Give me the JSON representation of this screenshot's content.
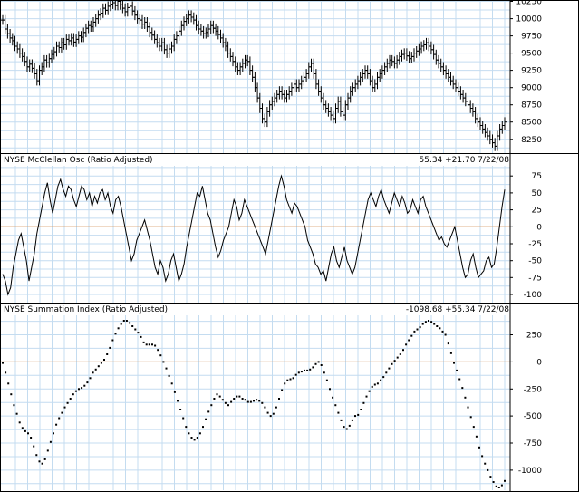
{
  "chart_data": [
    {
      "type": "ohlc",
      "title": "",
      "ylim": [
        8050,
        10270
      ],
      "yticks": [
        8250,
        8500,
        8750,
        9000,
        9250,
        9500,
        9750,
        10000,
        10250
      ],
      "grid": true,
      "values": [
        9980,
        9850,
        9780,
        9720,
        9680,
        9600,
        9560,
        9500,
        9450,
        9380,
        9300,
        9340,
        9280,
        9200,
        9100,
        9250,
        9300,
        9400,
        9360,
        9420,
        9480,
        9520,
        9600,
        9580,
        9650,
        9620,
        9700,
        9680,
        9720,
        9660,
        9700,
        9750,
        9730,
        9800,
        9860,
        9900,
        9880,
        9950,
        10000,
        10050,
        10080,
        10150,
        10120,
        10180,
        10210,
        10230,
        10190,
        10250,
        10200,
        10150,
        10100,
        10160,
        10180,
        10110,
        10050,
        10000,
        9980,
        9920,
        9950,
        9880,
        9800,
        9760,
        9700,
        9650,
        9600,
        9650,
        9550,
        9500,
        9560,
        9600,
        9700,
        9750,
        9820,
        9900,
        9960,
        10000,
        10050,
        10020,
        9980,
        9900,
        9850,
        9820,
        9780,
        9800,
        9850,
        9900,
        9860,
        9820,
        9770,
        9720,
        9650,
        9600,
        9500,
        9450,
        9380,
        9300,
        9250,
        9300,
        9350,
        9400,
        9380,
        9250,
        9150,
        9000,
        8850,
        8700,
        8550,
        8500,
        8650,
        8750,
        8800,
        8850,
        8900,
        8950,
        8900,
        8850,
        8900,
        8950,
        9000,
        9050,
        9000,
        9050,
        9100,
        9150,
        9200,
        9300,
        9350,
        9200,
        9050,
        8950,
        8850,
        8750,
        8700,
        8650,
        8600,
        8550,
        8700,
        8800,
        8650,
        8600,
        8750,
        8850,
        8950,
        9000,
        9050,
        9100,
        9150,
        9200,
        9250,
        9200,
        9100,
        9000,
        9050,
        9150,
        9200,
        9250,
        9300,
        9350,
        9400,
        9380,
        9350,
        9400,
        9450,
        9480,
        9500,
        9460,
        9420,
        9450,
        9500,
        9530,
        9560,
        9600,
        9620,
        9650,
        9600,
        9550,
        9480,
        9400,
        9350,
        9300,
        9250,
        9200,
        9150,
        9100,
        9050,
        9000,
        8950,
        8900,
        8850,
        8800,
        8750,
        8700,
        8650,
        8550,
        8500,
        8450,
        8400,
        8350,
        8300,
        8250,
        8200,
        8150,
        8300,
        8400,
        8450,
        8500
      ]
    },
    {
      "type": "line",
      "title": "NYSE McClellan Osc (Ratio Adjusted)",
      "readout": "55.34  +21.70  7/22/08",
      "ylim": [
        -112,
        90
      ],
      "yticks": [
        -100,
        -75,
        -50,
        -25,
        0,
        25,
        50,
        75
      ],
      "zero_line": 0,
      "zero_line_color": "#e07b20",
      "grid": true,
      "values": [
        -70,
        -80,
        -100,
        -90,
        -60,
        -40,
        -20,
        -10,
        -30,
        -50,
        -80,
        -60,
        -40,
        -10,
        10,
        30,
        50,
        65,
        40,
        20,
        40,
        60,
        70,
        55,
        45,
        60,
        55,
        40,
        30,
        45,
        60,
        55,
        40,
        50,
        30,
        45,
        35,
        50,
        55,
        40,
        50,
        30,
        20,
        40,
        45,
        30,
        10,
        -10,
        -30,
        -50,
        -40,
        -20,
        -10,
        0,
        10,
        -5,
        -20,
        -40,
        -60,
        -70,
        -50,
        -60,
        -80,
        -70,
        -50,
        -40,
        -60,
        -80,
        -70,
        -55,
        -30,
        -10,
        10,
        30,
        50,
        45,
        60,
        40,
        20,
        10,
        -10,
        -30,
        -45,
        -35,
        -20,
        -10,
        0,
        20,
        40,
        30,
        10,
        20,
        40,
        30,
        20,
        10,
        0,
        -10,
        -20,
        -30,
        -40,
        -20,
        0,
        20,
        40,
        60,
        75,
        60,
        40,
        30,
        20,
        35,
        30,
        20,
        10,
        0,
        -20,
        -30,
        -40,
        -55,
        -60,
        -70,
        -65,
        -80,
        -60,
        -40,
        -30,
        -50,
        -60,
        -45,
        -30,
        -50,
        -60,
        -70,
        -60,
        -40,
        -20,
        0,
        20,
        40,
        50,
        40,
        30,
        45,
        55,
        40,
        30,
        20,
        35,
        50,
        40,
        30,
        45,
        35,
        20,
        25,
        40,
        30,
        20,
        40,
        45,
        30,
        20,
        10,
        0,
        -10,
        -20,
        -15,
        -25,
        -30,
        -20,
        -10,
        0,
        -20,
        -40,
        -60,
        -75,
        -70,
        -50,
        -40,
        -60,
        -75,
        -70,
        -65,
        -50,
        -45,
        -60,
        -55,
        -30,
        0,
        30,
        55
      ]
    },
    {
      "type": "scatter",
      "title": "NYSE Summation Index (Ratio Adjusted)",
      "readout": "-1098.68  +55.34  7/22/08",
      "ylim": [
        -1185,
        430
      ],
      "yticks": [
        -1000,
        -750,
        -500,
        -250,
        0,
        250
      ],
      "zero_line": 0,
      "zero_line_color": "#e07b20",
      "grid": true,
      "values": [
        -10,
        -100,
        -200,
        -300,
        -400,
        -480,
        -560,
        -610,
        -640,
        -660,
        -700,
        -780,
        -860,
        -920,
        -940,
        -900,
        -820,
        -740,
        -660,
        -580,
        -520,
        -470,
        -420,
        -380,
        -340,
        -300,
        -270,
        -250,
        -240,
        -220,
        -190,
        -150,
        -100,
        -70,
        -40,
        -10,
        20,
        70,
        130,
        200,
        260,
        310,
        350,
        380,
        380,
        360,
        330,
        300,
        270,
        230,
        180,
        160,
        160,
        160,
        150,
        110,
        60,
        0,
        -60,
        -130,
        -200,
        -280,
        -360,
        -440,
        -520,
        -600,
        -660,
        -700,
        -720,
        -700,
        -660,
        -600,
        -530,
        -460,
        -400,
        -340,
        -300,
        -320,
        -350,
        -380,
        -400,
        -370,
        -340,
        -320,
        -320,
        -340,
        -350,
        -370,
        -370,
        -360,
        -350,
        -360,
        -380,
        -420,
        -470,
        -500,
        -480,
        -420,
        -340,
        -260,
        -200,
        -170,
        -160,
        -150,
        -120,
        -100,
        -90,
        -80,
        -80,
        -70,
        -50,
        -20,
        0,
        -30,
        -100,
        -170,
        -250,
        -330,
        -400,
        -470,
        -540,
        -600,
        -620,
        -590,
        -540,
        -500,
        -490,
        -440,
        -380,
        -320,
        -270,
        -230,
        -210,
        -200,
        -170,
        -140,
        -100,
        -60,
        -20,
        10,
        40,
        70,
        110,
        160,
        200,
        240,
        280,
        300,
        320,
        350,
        370,
        380,
        370,
        350,
        330,
        310,
        280,
        250,
        170,
        80,
        -10,
        -80,
        -160,
        -240,
        -330,
        -420,
        -510,
        -600,
        -690,
        -790,
        -870,
        -940,
        -1000,
        -1060,
        -1110,
        -1150,
        -1160,
        -1140,
        -1100
      ]
    }
  ]
}
